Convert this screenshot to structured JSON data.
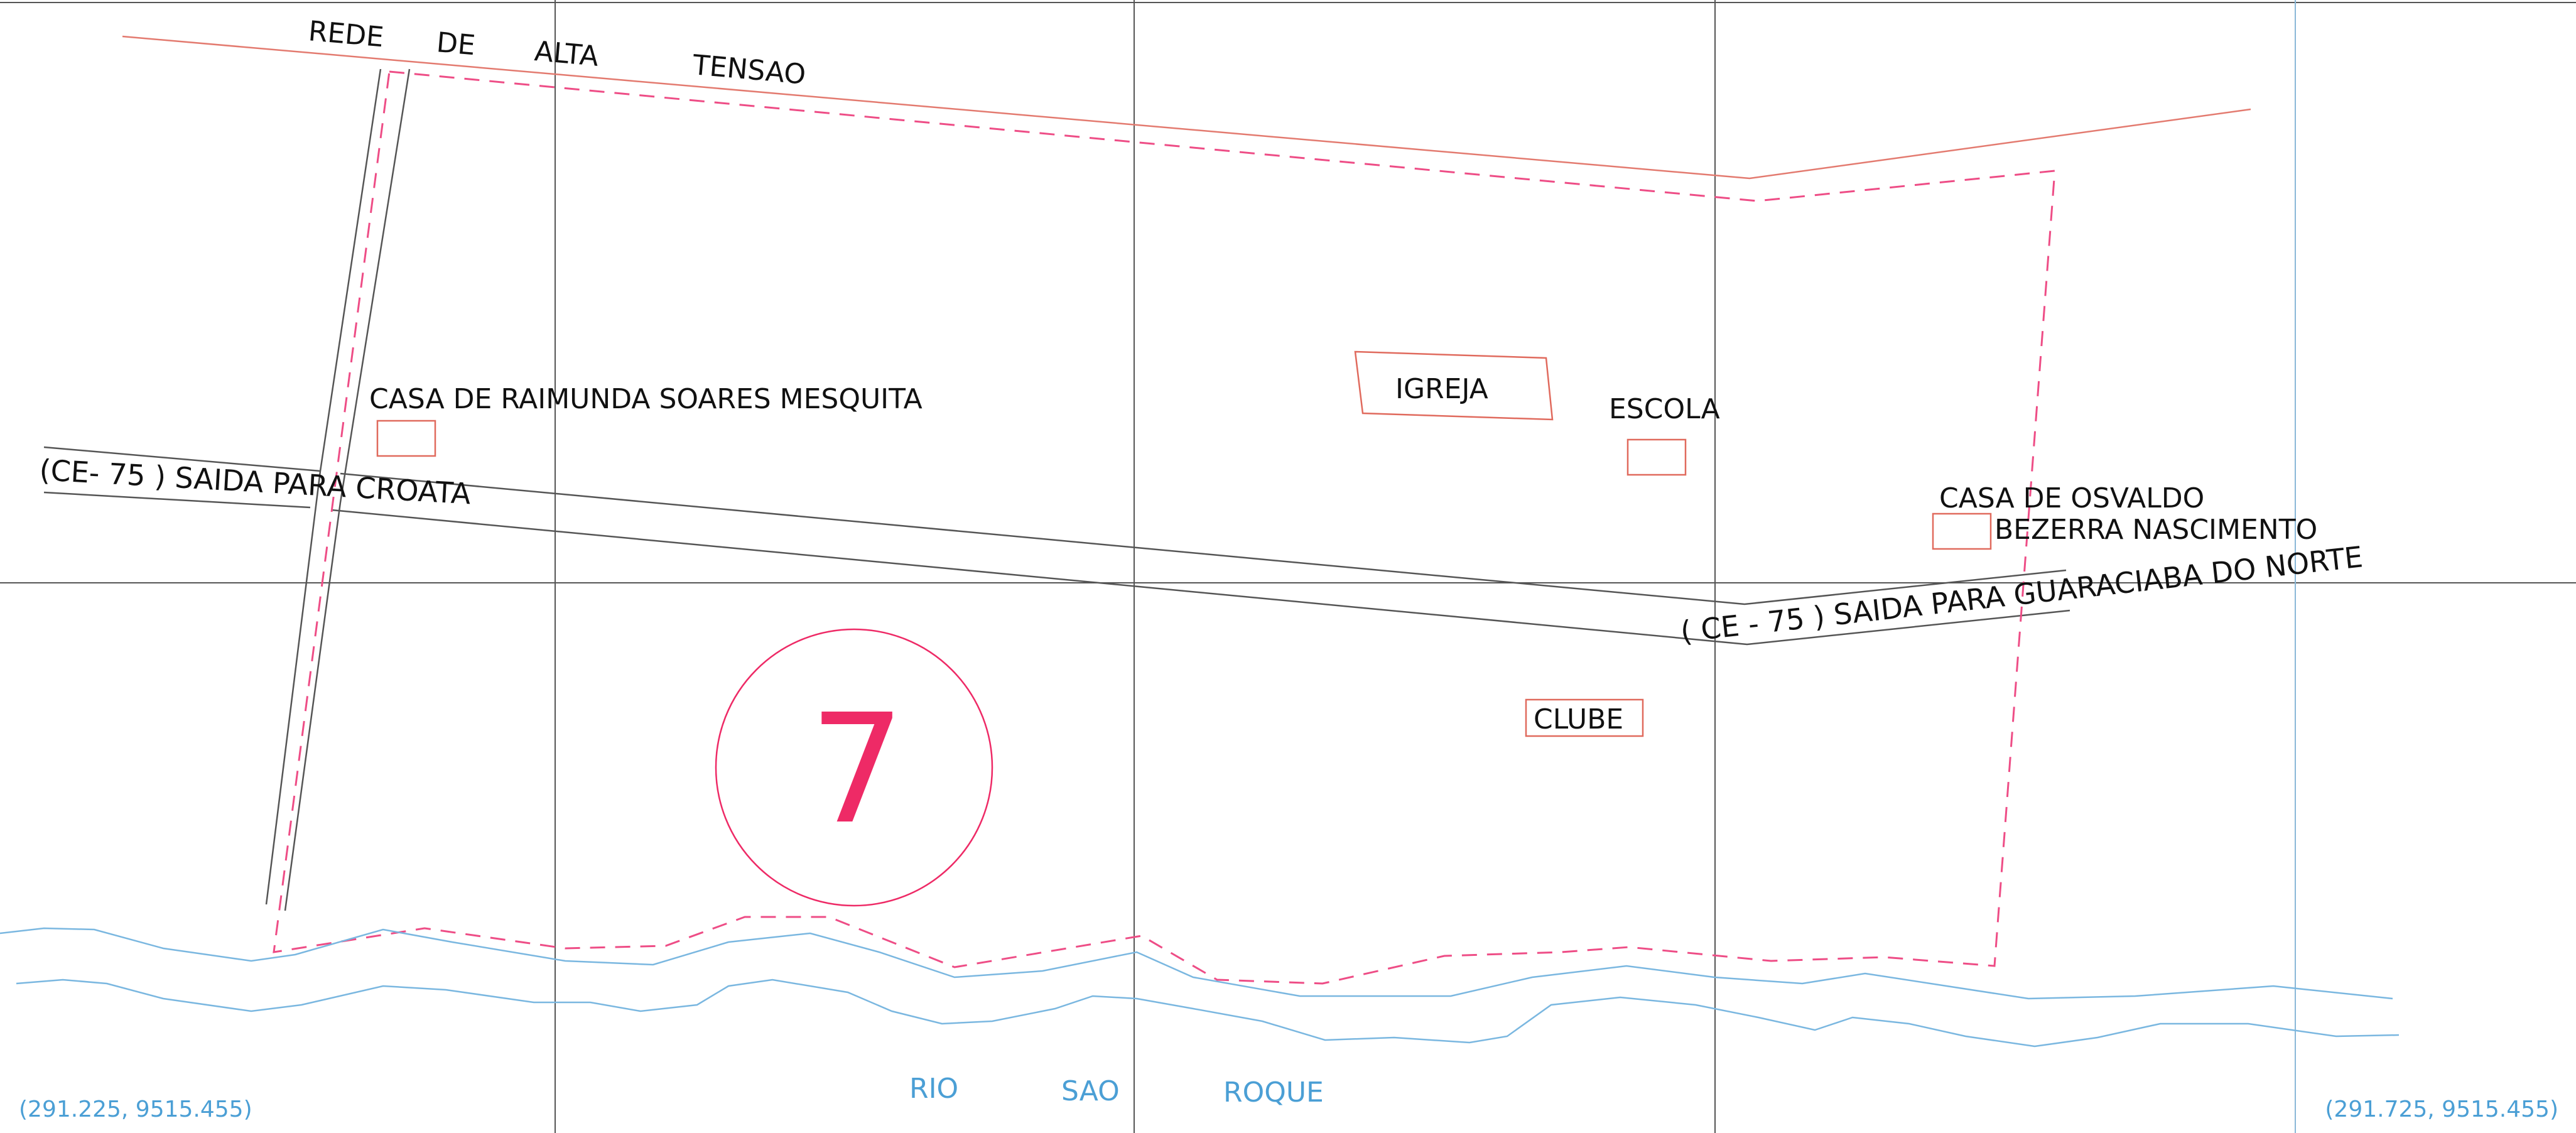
{
  "colors": {
    "grid": "#555555",
    "road": "#555555",
    "powerline": "#e37a6f",
    "boundary": "#ee4d86",
    "building": "#e06a5d",
    "river": "#7ab7e0",
    "river_label": "#4b9fd5",
    "marker": "#ee2a66",
    "text": "#111111"
  },
  "power_line": {
    "words": [
      "REDE",
      "DE",
      "ALTA",
      "TENSAO"
    ]
  },
  "buildings": {
    "casa_raimunda": "CASA DE RAIMUNDA SOARES MESQUITA",
    "igreja": "IGREJA",
    "escola": "ESCOLA",
    "casa_osvaldo_line1": "CASA DE OSVALDO",
    "casa_osvaldo_line2": "BEZERRA NASCIMENTO",
    "clube": "CLUBE"
  },
  "roads": {
    "croata": "(CE- 75 ) SAIDA PARA CROATA",
    "guaraciaba": "( CE - 75 ) SAIDA PARA GUARACIABA DO NORTE"
  },
  "area_marker": {
    "number": "7"
  },
  "river": {
    "words": [
      "RIO",
      "SAO",
      "ROQUE"
    ]
  },
  "coordinates": {
    "bottom_left": "(291.225, 9515.455)",
    "bottom_right": "(291.725, 9515.455)"
  }
}
